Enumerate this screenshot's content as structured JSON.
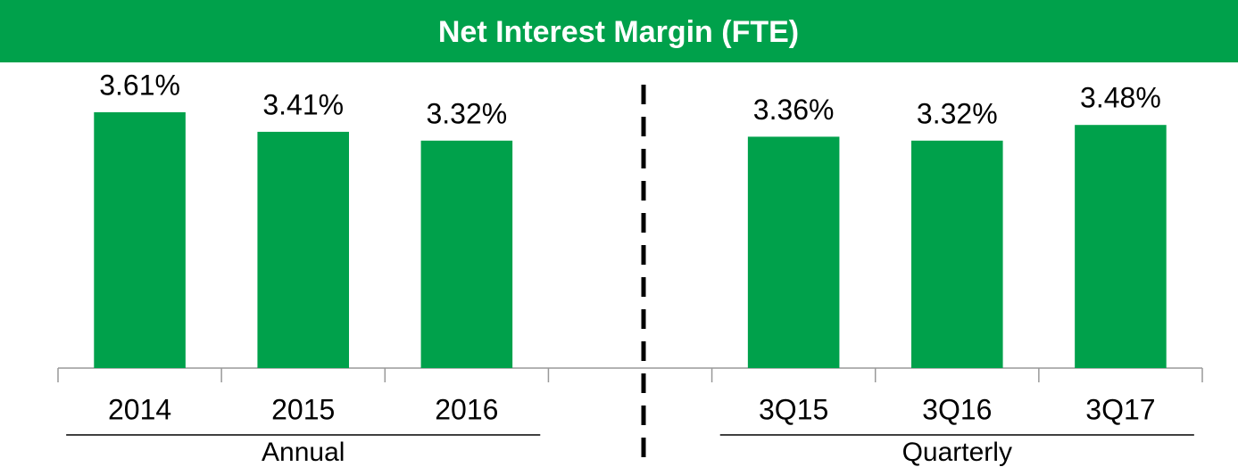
{
  "chart_data": {
    "type": "bar",
    "title": "Net Interest Margin (FTE)",
    "categories": [
      "2014",
      "2015",
      "2016",
      null,
      "3Q15",
      "3Q16",
      "3Q17"
    ],
    "values": [
      3.61,
      3.41,
      3.32,
      null,
      3.36,
      3.32,
      3.48
    ],
    "value_labels": [
      "3.61%",
      "3.41%",
      "3.32%",
      null,
      "3.36%",
      "3.32%",
      "3.48%"
    ],
    "color": "#00a14b",
    "ylim": [
      1,
      4
    ],
    "groups": [
      {
        "label": "Annual",
        "members": [
          "2014",
          "2015",
          "2016"
        ]
      },
      {
        "label": "Quarterly",
        "members": [
          "3Q15",
          "3Q16",
          "3Q17"
        ]
      }
    ]
  }
}
